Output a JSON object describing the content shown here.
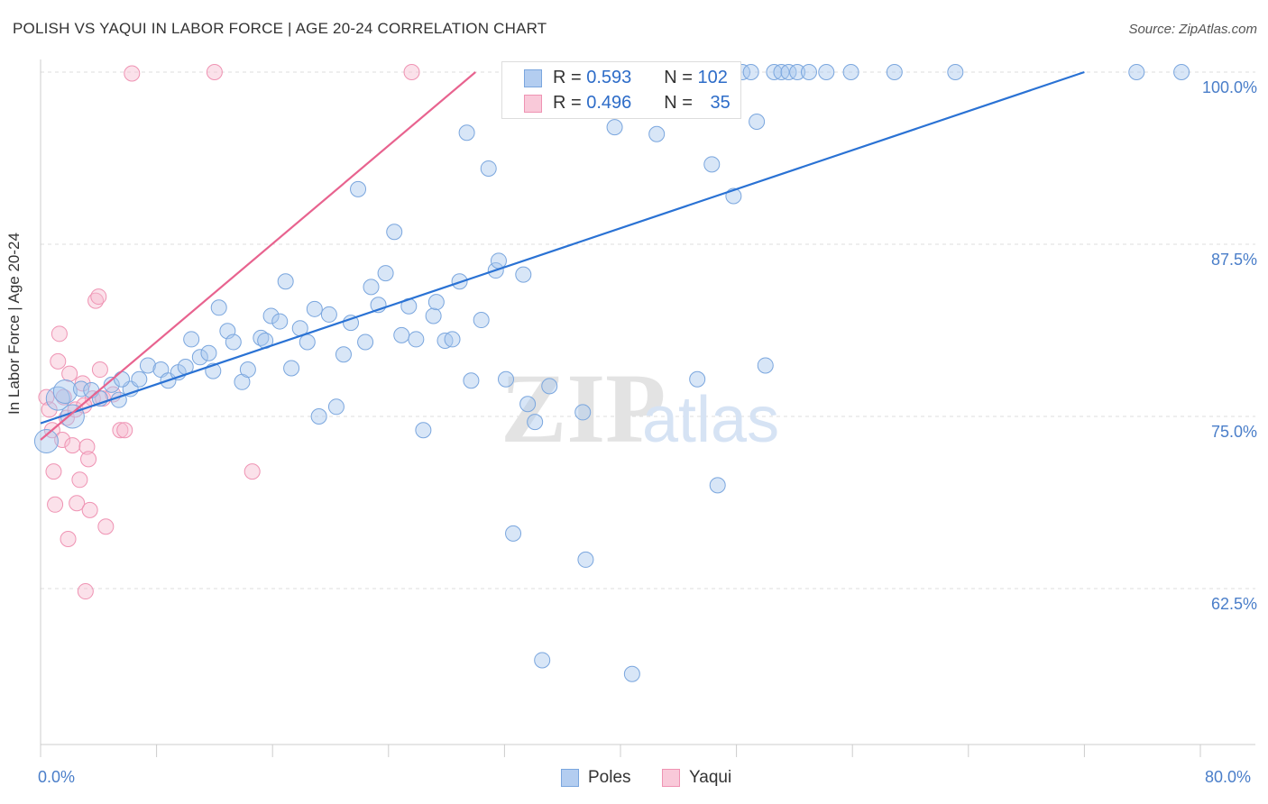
{
  "title": "POLISH VS YAQUI IN LABOR FORCE | AGE 20-24 CORRELATION CHART",
  "source": "Source: ZipAtlas.com",
  "watermark_zip": "ZIP",
  "watermark_atlas": "atlas",
  "legend": {
    "r_label": "R =",
    "n_label": "N =",
    "poles_r": "0.593",
    "poles_n": "102",
    "yaqui_r": "0.496",
    "yaqui_n": "35"
  },
  "bottom_legend": {
    "poles": "Poles",
    "yaqui": "Yaqui"
  },
  "colors": {
    "poles_fill": "#a9c7ee",
    "poles_stroke": "#7aa6de",
    "poles_line": "#2a72d4",
    "yaqui_fill": "#f7bcd0",
    "yaqui_stroke": "#ef93b3",
    "yaqui_line": "#e8638f",
    "tick_text": "#4a7ec9"
  },
  "chart_data": {
    "type": "scatter",
    "title": "POLISH VS YAQUI IN LABOR FORCE | AGE 20-24 CORRELATION CHART",
    "xlabel": "",
    "ylabel": "In Labor Force | Age 20-24",
    "xlim": [
      0,
      80
    ],
    "ylim": [
      50.5,
      100.8
    ],
    "x_tick_labels": [
      "0.0%",
      "80.0%"
    ],
    "y_ticks": [
      62.5,
      75.0,
      87.5,
      100.0
    ],
    "y_tick_labels": [
      "62.5%",
      "75.0%",
      "87.5%",
      "100.0%"
    ],
    "series": [
      {
        "name": "Poles",
        "r": 0.593,
        "n": 102,
        "trend": {
          "x": [
            0,
            72.0
          ],
          "y": [
            74.5,
            100.0
          ]
        },
        "points": [
          [
            0.4,
            73.2
          ],
          [
            1.2,
            76.3
          ],
          [
            1.7,
            76.8
          ],
          [
            2.2,
            75.0
          ],
          [
            2.8,
            77.0
          ],
          [
            3.5,
            76.9
          ],
          [
            4.1,
            76.3
          ],
          [
            4.9,
            77.3
          ],
          [
            5.4,
            76.2
          ],
          [
            6.2,
            77.0
          ],
          [
            5.6,
            77.7
          ],
          [
            6.8,
            77.7
          ],
          [
            7.4,
            78.7
          ],
          [
            8.3,
            78.4
          ],
          [
            8.8,
            77.6
          ],
          [
            9.5,
            78.2
          ],
          [
            10.0,
            78.6
          ],
          [
            10.4,
            80.6
          ],
          [
            11.0,
            79.3
          ],
          [
            11.6,
            79.6
          ],
          [
            11.9,
            78.3
          ],
          [
            12.3,
            82.9
          ],
          [
            12.9,
            81.2
          ],
          [
            13.3,
            80.4
          ],
          [
            13.9,
            77.5
          ],
          [
            14.3,
            78.4
          ],
          [
            15.2,
            80.7
          ],
          [
            15.5,
            80.5
          ],
          [
            15.9,
            82.3
          ],
          [
            16.5,
            81.9
          ],
          [
            16.9,
            84.8
          ],
          [
            17.3,
            78.5
          ],
          [
            17.9,
            81.4
          ],
          [
            18.4,
            80.4
          ],
          [
            18.9,
            82.8
          ],
          [
            19.2,
            75.0
          ],
          [
            19.9,
            82.4
          ],
          [
            20.4,
            75.7
          ],
          [
            20.9,
            79.5
          ],
          [
            21.4,
            81.8
          ],
          [
            21.9,
            91.5
          ],
          [
            22.4,
            80.4
          ],
          [
            22.8,
            84.4
          ],
          [
            23.3,
            83.1
          ],
          [
            23.8,
            85.4
          ],
          [
            24.4,
            88.4
          ],
          [
            24.9,
            80.9
          ],
          [
            25.4,
            83.0
          ],
          [
            25.9,
            80.6
          ],
          [
            26.4,
            74.0
          ],
          [
            27.1,
            82.3
          ],
          [
            27.3,
            83.3
          ],
          [
            27.9,
            80.5
          ],
          [
            28.4,
            80.6
          ],
          [
            28.9,
            84.8
          ],
          [
            29.4,
            95.6
          ],
          [
            29.7,
            77.6
          ],
          [
            30.4,
            82.0
          ],
          [
            30.9,
            93.0
          ],
          [
            31.4,
            85.6
          ],
          [
            31.6,
            86.3
          ],
          [
            32.1,
            77.7
          ],
          [
            32.6,
            66.5
          ],
          [
            33.3,
            85.3
          ],
          [
            33.6,
            75.9
          ],
          [
            34.1,
            74.6
          ],
          [
            34.6,
            57.3
          ],
          [
            35.1,
            77.2
          ],
          [
            36.4,
            100.0
          ],
          [
            37.4,
            75.3
          ],
          [
            37.6,
            64.6
          ],
          [
            38.9,
            100.0
          ],
          [
            39.6,
            96.0
          ],
          [
            40.3,
            100.0
          ],
          [
            40.8,
            56.3
          ],
          [
            41.5,
            100.0
          ],
          [
            42.1,
            100.0
          ],
          [
            42.5,
            95.5
          ],
          [
            43.4,
            100.0
          ],
          [
            44.1,
            100.0
          ],
          [
            44.6,
            100.0
          ],
          [
            45.3,
            77.7
          ],
          [
            46.0,
            100.0
          ],
          [
            46.3,
            93.3
          ],
          [
            46.7,
            70.0
          ],
          [
            47.3,
            100.0
          ],
          [
            47.8,
            91.0
          ],
          [
            48.4,
            100.0
          ],
          [
            49.0,
            100.0
          ],
          [
            49.4,
            96.4
          ],
          [
            50.0,
            78.7
          ],
          [
            50.6,
            100.0
          ],
          [
            51.1,
            100.0
          ],
          [
            51.6,
            100.0
          ],
          [
            52.2,
            100.0
          ],
          [
            53.0,
            100.0
          ],
          [
            54.2,
            100.0
          ],
          [
            55.9,
            100.0
          ],
          [
            58.9,
            100.0
          ],
          [
            63.1,
            100.0
          ],
          [
            75.6,
            100.0
          ],
          [
            78.7,
            100.0
          ]
        ]
      },
      {
        "name": "Yaqui",
        "r": 0.496,
        "n": 35,
        "trend": {
          "x": [
            0,
            30.0
          ],
          "y": [
            73.3,
            100.0
          ]
        },
        "points": [
          [
            0.4,
            76.4
          ],
          [
            0.6,
            75.5
          ],
          [
            0.8,
            74.0
          ],
          [
            0.9,
            71.0
          ],
          [
            1.0,
            68.6
          ],
          [
            1.2,
            79.0
          ],
          [
            1.3,
            81.0
          ],
          [
            1.5,
            73.3
          ],
          [
            1.6,
            76.4
          ],
          [
            1.8,
            74.9
          ],
          [
            1.9,
            66.1
          ],
          [
            2.0,
            78.1
          ],
          [
            2.2,
            72.9
          ],
          [
            2.4,
            75.5
          ],
          [
            2.5,
            68.7
          ],
          [
            2.7,
            70.4
          ],
          [
            2.9,
            77.4
          ],
          [
            3.1,
            62.3
          ],
          [
            3.2,
            72.8
          ],
          [
            3.3,
            71.9
          ],
          [
            3.4,
            68.2
          ],
          [
            3.6,
            76.3
          ],
          [
            3.8,
            83.4
          ],
          [
            4.0,
            83.7
          ],
          [
            4.1,
            78.4
          ],
          [
            4.3,
            76.3
          ],
          [
            4.5,
            67.0
          ],
          [
            5.0,
            76.6
          ],
          [
            5.5,
            74.0
          ],
          [
            5.8,
            74.0
          ],
          [
            6.3,
            99.9
          ],
          [
            12.0,
            100.0
          ],
          [
            14.6,
            71.0
          ],
          [
            25.6,
            100.0
          ],
          [
            3.0,
            75.8
          ]
        ]
      }
    ]
  }
}
